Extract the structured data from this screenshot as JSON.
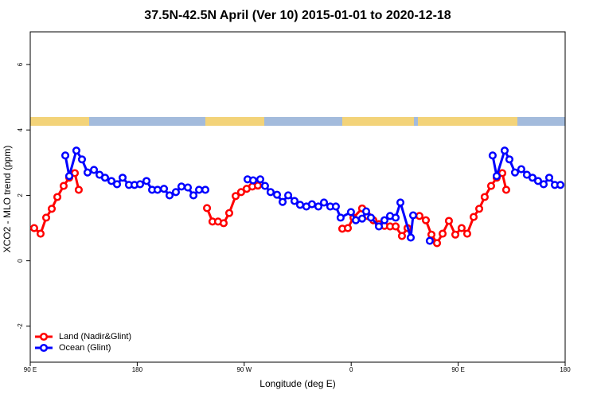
{
  "chart_data": {
    "type": "line",
    "title": "37.5N-42.5N April (Ver 10)   2015-01-01 to 2020-12-18",
    "x_label": "Longitude (deg E)",
    "y_label": "XCO2 - MLO trend (ppm)",
    "xlim": [
      90,
      540
    ],
    "xticks": [
      {
        "value": 90,
        "label": "90 E"
      },
      180,
      {
        "value": 270,
        "label": "90 W"
      },
      {
        "value": 360,
        "label": "0"
      },
      {
        "value": 450,
        "label": "90 E"
      },
      {
        "value": 540,
        "label": "180"
      }
    ],
    "ylim": [
      -3.1,
      7
    ],
    "yticks": [
      -2,
      0,
      2,
      4,
      6
    ],
    "legend": "bottom-left",
    "series": [
      {
        "name": "Land (Nadir&Glint)",
        "color": "#ff0000",
        "x": [
          93.3,
          98.7,
          103.4,
          108.1,
          112.8,
          118.1,
          122.8,
          127.5,
          130.8,
          null,
          238.7,
          243.3,
          248.0,
          252.7,
          257.4,
          262.8,
          267.4,
          272.1,
          276.8,
          281.5,
          null,
          352.5,
          357.2,
          361.9,
          369.2,
          373.9,
          378.6,
          383.3,
          388.0,
          392.7,
          397.4,
          402.7,
          407.4,
          null,
          417.4,
          422.8,
          427.5,
          432.2,
          436.9,
          442.2,
          447.6,
          452.9,
          457.6,
          463.0,
          467.7,
          472.3,
          477.7,
          482.4,
          487.1,
          490.4
        ],
        "values": [
          1.0,
          0.83,
          1.32,
          1.59,
          1.95,
          2.29,
          2.54,
          2.68,
          2.17,
          null,
          1.61,
          1.2,
          1.2,
          1.15,
          1.46,
          1.98,
          2.1,
          2.2,
          2.27,
          2.3,
          null,
          0.98,
          1.0,
          1.32,
          1.6,
          1.37,
          1.24,
          1.12,
          1.07,
          1.05,
          1.05,
          0.76,
          1.0,
          null,
          1.37,
          1.24,
          0.8,
          0.54,
          0.83,
          1.22,
          0.8,
          1.0,
          0.83,
          1.34,
          1.59,
          1.95,
          2.29,
          2.54,
          2.68,
          2.17
        ]
      },
      {
        "name": "Ocean (Glint)",
        "color": "#0000ff",
        "x": [
          119.5,
          122.8,
          128.8,
          133.5,
          138.2,
          143.6,
          148.3,
          152.9,
          158.3,
          163.0,
          167.7,
          173.0,
          177.7,
          182.4,
          187.8,
          192.5,
          197.1,
          202.5,
          207.2,
          212.5,
          217.2,
          222.6,
          227.3,
          232.0,
          237.3,
          null,
          272.8,
          277.5,
          283.5,
          287.5,
          292.2,
          297.6,
          302.3,
          307.0,
          312.3,
          317.0,
          322.3,
          327.0,
          332.4,
          337.1,
          342.4,
          347.1,
          351.1,
          359.8,
          363.9,
          369.2,
          372.6,
          376.6,
          383.3,
          388.0,
          392.7,
          397.4,
          401.4,
          410.1,
          412.1,
          null,
          426.1,
          null,
          479.0,
          482.4,
          489.1,
          493.1,
          497.8,
          503.1,
          507.8,
          512.5,
          517.2,
          521.9,
          526.6,
          531.3,
          536.0
        ],
        "values": [
          3.22,
          2.59,
          3.37,
          3.1,
          2.7,
          2.78,
          2.63,
          2.54,
          2.44,
          2.34,
          2.54,
          2.32,
          2.32,
          2.34,
          2.44,
          2.17,
          2.17,
          2.2,
          2.0,
          2.1,
          2.27,
          2.24,
          2.0,
          2.17,
          2.17,
          null,
          2.49,
          2.46,
          2.49,
          2.29,
          2.1,
          2.02,
          1.8,
          2.0,
          1.83,
          1.71,
          1.66,
          1.73,
          1.66,
          1.78,
          1.66,
          1.66,
          1.32,
          1.49,
          1.24,
          1.29,
          1.51,
          1.32,
          1.05,
          1.24,
          1.37,
          1.32,
          1.78,
          0.71,
          1.39,
          null,
          0.61,
          null,
          3.22,
          2.59,
          3.37,
          3.1,
          2.7,
          2.8,
          2.63,
          2.54,
          2.44,
          2.34,
          2.54,
          2.32,
          2.32
        ]
      }
    ]
  }
}
